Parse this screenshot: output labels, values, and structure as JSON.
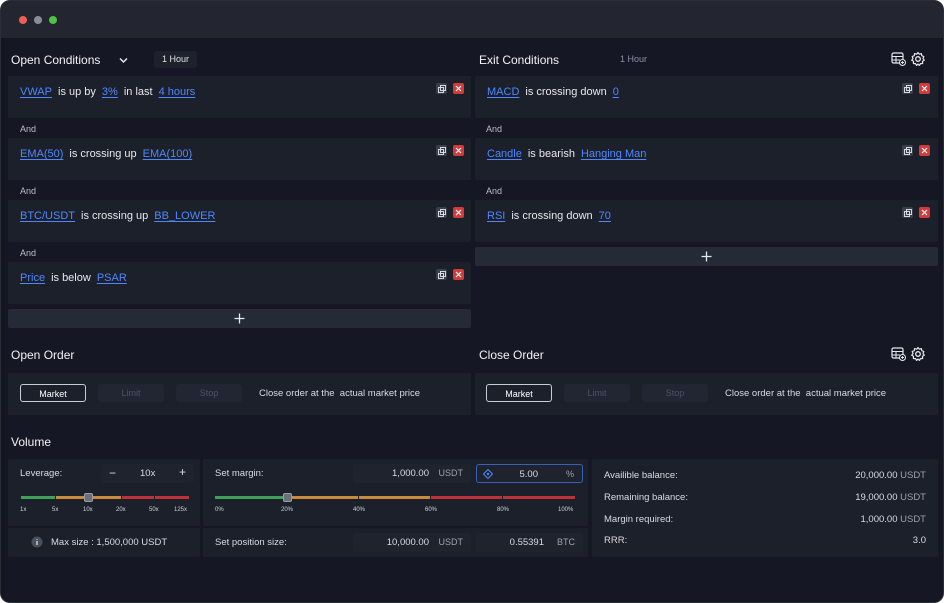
{
  "open_conditions": {
    "title": "Open Conditions",
    "timeframe": "1 Hour",
    "rows": [
      {
        "a": "VWAP",
        "op": "is up by",
        "b": "3%",
        "mid": "in last",
        "c": "4 hours"
      },
      {
        "a": "EMA(50)",
        "op": "is crossing up",
        "b": "EMA(100)"
      },
      {
        "a": "BTC/USDT",
        "op": "is crossing up",
        "b": "BB_LOWER"
      },
      {
        "a": "Price",
        "op": "is below",
        "b": "PSAR"
      }
    ],
    "joiner": "And"
  },
  "exit_conditions": {
    "title": "Exit Conditions",
    "timeframe": "1 Hour",
    "rows": [
      {
        "a": "MACD",
        "op": "is crossing down",
        "b": "0"
      },
      {
        "a": "Candle",
        "op": "is bearish",
        "b": "Hanging Man"
      },
      {
        "a": "RSI",
        "op": "is crossing down",
        "b": "70"
      }
    ],
    "joiner": "And"
  },
  "open_order": {
    "title": "Open Order",
    "types": [
      "Market",
      "Limit",
      "Stop"
    ],
    "selected": "Market",
    "note": "Close order at the  actual market price"
  },
  "close_order": {
    "title": "Close Order",
    "types": [
      "Market",
      "Limit",
      "Stop"
    ],
    "selected": "Market",
    "note": "Close order at the  actual market price"
  },
  "volume": {
    "title": "Volume",
    "leverage_label": "Leverage:",
    "leverage_value": "10x",
    "leverage_ticks": [
      "1x",
      "5x",
      "10x",
      "20x",
      "50x",
      "125x"
    ],
    "leverage_position": 0.4,
    "max_size": "Max size : 1,500,000 USDT",
    "margin_label": "Set margin:",
    "margin_value": "1,000.00",
    "margin_unit": "USDT",
    "margin_percent": "5.00",
    "percent_unit": "%",
    "margin_ticks": [
      "0%",
      "20%",
      "40%",
      "60%",
      "80%",
      "100%"
    ],
    "margin_position": 0.2,
    "position_label": "Set position size:",
    "position_usdt": "10,000.00",
    "position_usdt_unit": "USDT",
    "position_btc": "0.55391",
    "position_btc_unit": "BTC"
  },
  "balances": [
    {
      "label": "Availible balance:",
      "value": "20,000.00",
      "unit": "USDT"
    },
    {
      "label": "Remaining balance:",
      "value": "19,000.00",
      "unit": "USDT"
    },
    {
      "label": "Margin required:",
      "value": "1,000.00",
      "unit": "USDT"
    },
    {
      "label": "RRR:",
      "value": "3.0",
      "unit": ""
    }
  ],
  "colors": {
    "link": "#4f87ff",
    "delete": "#d33a3a",
    "close_dot": "#ee5d56",
    "min_dot": "#8a8d96",
    "max_dot": "#4fc144",
    "slider_green": "#3fa05a",
    "slider_orange": "#c98a3c",
    "slider_red": "#c0303b"
  },
  "icons": {
    "chevron": "chevron-down-icon",
    "settings": "gear-icon",
    "table_add": "table-add-icon",
    "copy": "copy-icon",
    "delete": "close-icon",
    "add": "plus-icon",
    "info": "info-icon",
    "crosshair": "crosshair-icon"
  }
}
